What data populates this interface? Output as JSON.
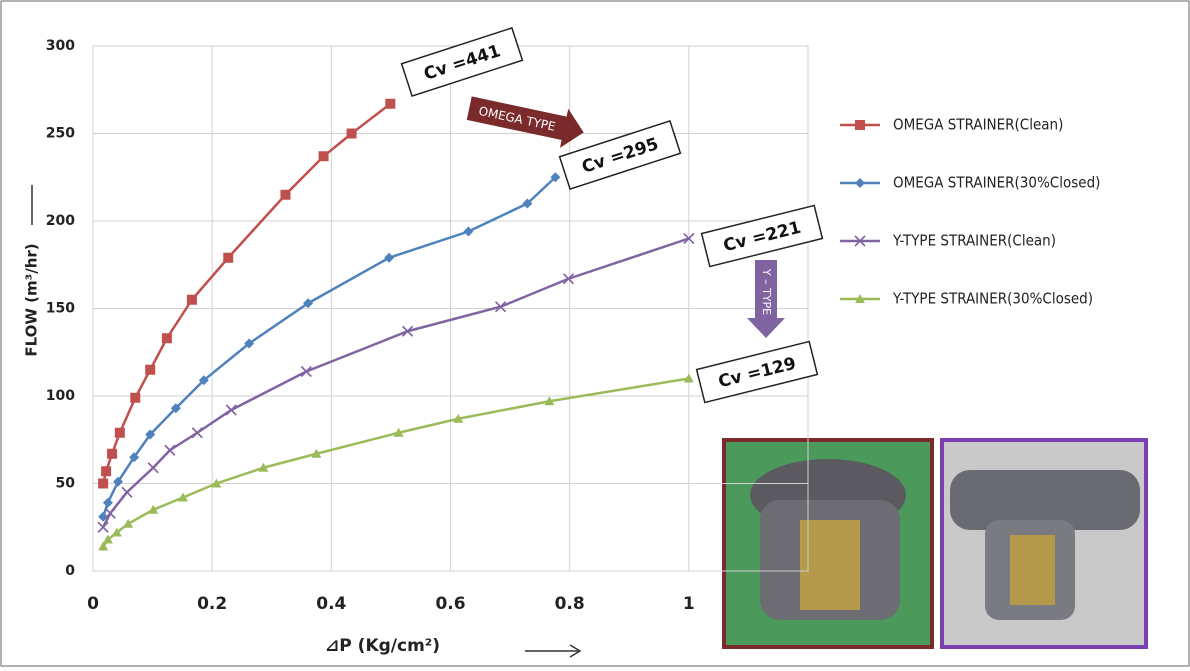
{
  "chart_data": {
    "type": "line",
    "xlabel": "⊿P (Kg/cm²)",
    "ylabel": "FLOW (m³/hr)",
    "xlim": [
      0,
      1.2
    ],
    "ylim": [
      0,
      300
    ],
    "xticks": [
      0,
      0.2,
      0.4,
      0.6,
      0.8,
      1
    ],
    "yticks": [
      0,
      50,
      100,
      150,
      200,
      250,
      300
    ],
    "grid": true,
    "legend": "right",
    "series": [
      {
        "name": "OMEGA STRAINER(Clean)",
        "color": "#c0504d",
        "marker": "square",
        "x": [
          0.017,
          0.022,
          0.032,
          0.045,
          0.071,
          0.096,
          0.124,
          0.166,
          0.227,
          0.323,
          0.387,
          0.434,
          0.499
        ],
        "values": [
          50,
          57,
          67,
          79,
          99,
          115,
          133,
          155,
          179,
          215,
          237,
          250,
          267
        ]
      },
      {
        "name": "OMEGA STRAINER(30%Closed)",
        "color": "#4f81bd",
        "marker": "diamond",
        "x": [
          0.017,
          0.025,
          0.042,
          0.069,
          0.096,
          0.139,
          0.186,
          0.262,
          0.361,
          0.497,
          0.63,
          0.729,
          0.776
        ],
        "values": [
          31,
          39,
          51,
          65,
          78,
          93,
          109,
          130,
          153,
          179,
          194,
          210,
          225
        ]
      },
      {
        "name": "Y-TYPE  STRAINER(Clean)",
        "color": "#8064a2",
        "marker": "cross",
        "x": [
          0.017,
          0.029,
          0.057,
          0.101,
          0.129,
          0.175,
          0.232,
          0.358,
          0.528,
          0.684,
          0.798,
          1.0
        ],
        "values": [
          25,
          33,
          45,
          59,
          69,
          79,
          92,
          114,
          137,
          151,
          167,
          190
        ]
      },
      {
        "name": "Y-TYPE  STRAINER(30%Closed)",
        "color": "#9bbb59",
        "marker": "triangle",
        "x": [
          0.017,
          0.025,
          0.04,
          0.059,
          0.101,
          0.151,
          0.207,
          0.286,
          0.375,
          0.513,
          0.613,
          0.766,
          1.0
        ],
        "values": [
          14,
          18,
          22,
          27,
          35,
          42,
          50,
          59,
          67,
          79,
          87,
          97,
          110
        ]
      }
    ],
    "annotations": [
      "Cv =441",
      "Cv =295",
      "Cv =221",
      "Cv =129",
      "OMEGA TYPE",
      "Y – TYPE"
    ]
  }
}
